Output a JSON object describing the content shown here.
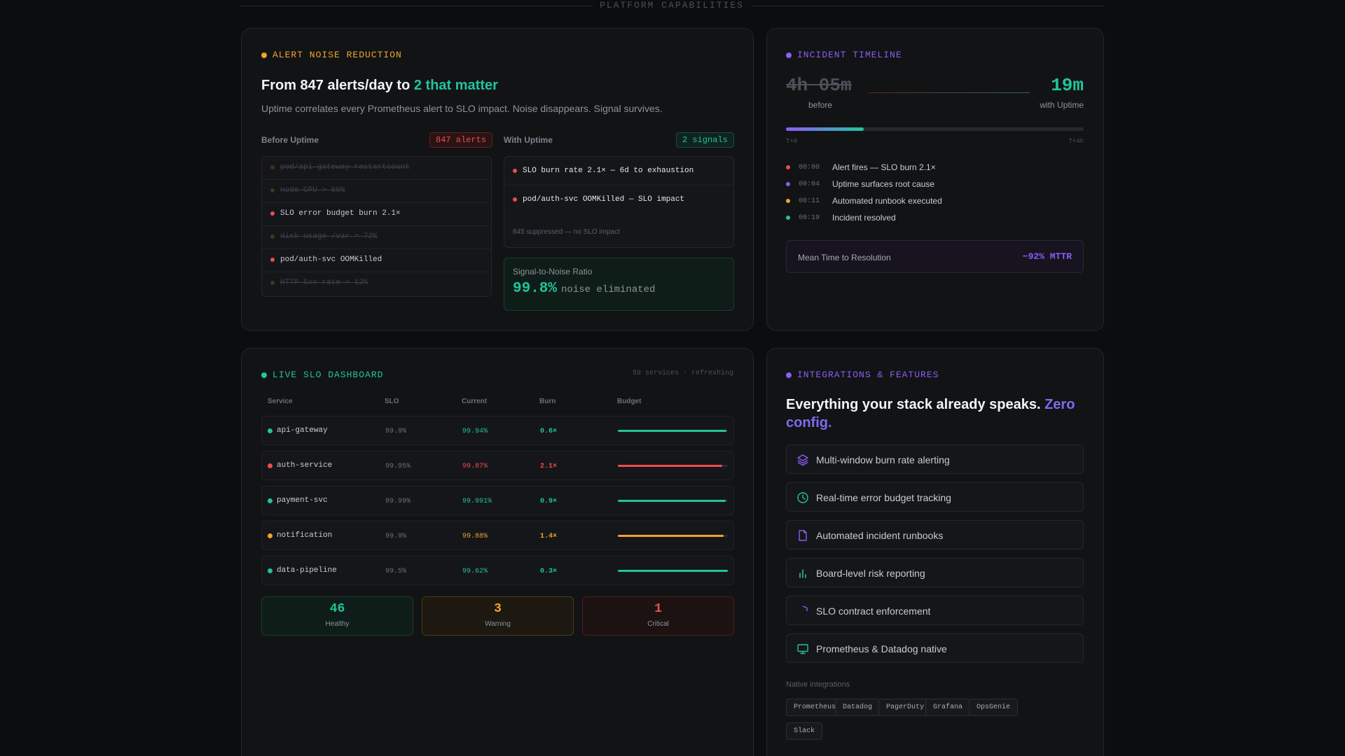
{
  "section_label": "PLATFORM CAPABILITIES",
  "noise": {
    "title": "ALERT NOISE REDUCTION",
    "headline_pre": "From 847 alerts/day to ",
    "headline_accent": "2 that matter",
    "subtitle": "Uptime correlates every Prometheus alert to SLO impact. Noise disappears. Signal survives.",
    "before_label": "Before Uptime",
    "before_pill": "847 alerts",
    "with_label": "With Uptime",
    "with_pill": "2 signals",
    "before_items": [
      {
        "text": "pod/api-gateway restartcount",
        "state": "muted"
      },
      {
        "text": "node CPU > 80%",
        "state": "muted"
      },
      {
        "text": "SLO error budget burn 2.1×",
        "state": "active"
      },
      {
        "text": "disk usage /var > 72%",
        "state": "muted"
      },
      {
        "text": "pod/auth-svc OOMKilled",
        "state": "active"
      },
      {
        "text": "HTTP 5xx rate > 12%",
        "state": "muted"
      }
    ],
    "with_items": [
      "SLO burn rate 2.1× — 6d to exhaustion",
      "pod/auth-svc OOMKilled — SLO impact"
    ],
    "suppressed": "845 suppressed — no SLO impact",
    "snr_label": "Signal-to-Noise Ratio",
    "snr_value": "99.8%",
    "snr_suffix": "noise eliminated",
    "colors": {
      "accent": "#f0a32e",
      "red": "#ef4d4d",
      "green": "#22c39a"
    }
  },
  "timeline": {
    "title": "INCIDENT TIMELINE",
    "before_time": "4h 05m",
    "before_label": "before",
    "after_time": "19m",
    "after_label": "with Uptime",
    "progress": 0.26,
    "axis_start": "T+0",
    "axis_end": "T+4h",
    "events": [
      {
        "time": "00:00",
        "text": "Alert fires — SLO burn 2.1×",
        "color": "#ef4d4d"
      },
      {
        "time": "00:04",
        "text": "Uptime surfaces root cause",
        "color": "#8b5cf6"
      },
      {
        "time": "00:11",
        "text": "Automated runbook executed",
        "color": "#f0a32e"
      },
      {
        "time": "00:19",
        "text": "Incident resolved",
        "color": "#22c39a"
      }
    ],
    "mttr_label": "Mean Time to Resolution",
    "mttr_value": "−92% MTTR"
  },
  "slo": {
    "title": "LIVE SLO DASHBOARD",
    "meta": "50 services · refreshing",
    "headers": [
      "Service",
      "SLO",
      "Current",
      "Burn",
      "Budget"
    ],
    "rows": [
      {
        "service": "api-gateway",
        "slo": "99.9%",
        "current": "99.94%",
        "burn": "0.6×",
        "budget": 0.99,
        "status": "#22c39a"
      },
      {
        "service": "auth-service",
        "slo": "99.95%",
        "current": "99.87%",
        "burn": "2.1×",
        "budget": 0.95,
        "status": "#ef4d4d"
      },
      {
        "service": "payment-svc",
        "slo": "99.99%",
        "current": "99.991%",
        "burn": "0.9×",
        "budget": 0.98,
        "status": "#22c39a"
      },
      {
        "service": "notification",
        "slo": "99.9%",
        "current": "99.88%",
        "burn": "1.4×",
        "budget": 0.96,
        "status": "#f0a32e"
      },
      {
        "service": "data-pipeline",
        "slo": "99.5%",
        "current": "99.62%",
        "burn": "0.3×",
        "budget": 1.0,
        "status": "#22c39a"
      }
    ],
    "stats": [
      {
        "value": "46",
        "label": "Healthy",
        "color": "#22c39a",
        "bg": "#0f1d19",
        "border": "#1d3a32"
      },
      {
        "value": "3",
        "label": "Warning",
        "color": "#f0a32e",
        "bg": "#1d1810",
        "border": "#4a3a1d"
      },
      {
        "value": "1",
        "label": "Critical",
        "color": "#ef4d4d",
        "bg": "#1d1212",
        "border": "#4a2224"
      }
    ]
  },
  "integrations": {
    "title": "INTEGRATIONS & FEATURES",
    "headline_pre": "Everything your stack already speaks. ",
    "headline_accent": "Zero config.",
    "features": [
      {
        "label": "Multi-window burn rate alerting",
        "icon": "layers-icon",
        "color": "#8b5cf6"
      },
      {
        "label": "Real-time error budget tracking",
        "icon": "clock-icon",
        "color": "#22c39a"
      },
      {
        "label": "Automated incident runbooks",
        "icon": "document-icon",
        "color": "#8b5cf6"
      },
      {
        "label": "Board-level risk reporting",
        "icon": "bar-chart-icon",
        "color": "#22c39a"
      },
      {
        "label": "SLO contract enforcement",
        "icon": "shield-icon",
        "color": "#8b5cf6"
      },
      {
        "label": "Prometheus & Datadog native",
        "icon": "monitor-icon",
        "color": "#22c39a"
      }
    ],
    "native_label": "Native integrations",
    "tags": [
      "Prometheus",
      "Datadog",
      "PagerDuty",
      "Grafana",
      "OpsGenie",
      "Slack"
    ]
  }
}
